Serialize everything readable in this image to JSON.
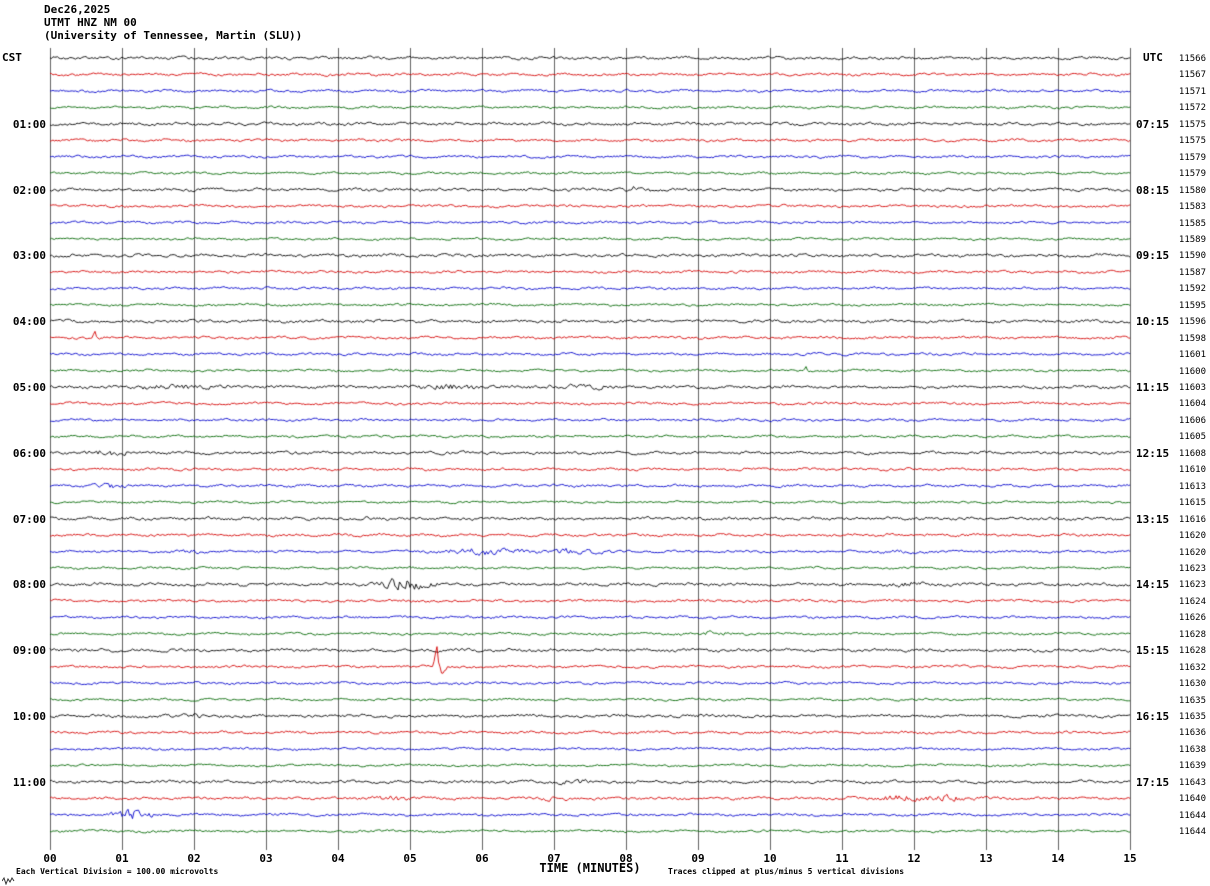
{
  "chart_data": {
    "type": "line",
    "title": "Dec26,2025",
    "station": "UTMT HNZ NM 00",
    "affiliation": "(University of Tennessee, Martin (SLU))",
    "xlabel": "TIME (MINUTES)",
    "x_tick_labels": [
      "00",
      "01",
      "02",
      "03",
      "04",
      "05",
      "06",
      "07",
      "08",
      "09",
      "10",
      "11",
      "12",
      "13",
      "14",
      "15"
    ],
    "x_range_minutes": [
      0,
      15
    ],
    "rows": 48,
    "minutes_per_row": 15,
    "grid_color": "#606060",
    "trace_color_cycle": [
      "#000000",
      "#d40000",
      "#0000cc",
      "#006600"
    ],
    "left_axis": {
      "header": "CST",
      "hour_labels": [
        {
          "row": 4,
          "label": "01:00"
        },
        {
          "row": 8,
          "label": "02:00"
        },
        {
          "row": 12,
          "label": "03:00"
        },
        {
          "row": 16,
          "label": "04:00"
        },
        {
          "row": 20,
          "label": "05:00"
        },
        {
          "row": 24,
          "label": "06:00"
        },
        {
          "row": 28,
          "label": "07:00"
        },
        {
          "row": 32,
          "label": "08:00"
        },
        {
          "row": 36,
          "label": "09:00"
        },
        {
          "row": 40,
          "label": "10:00"
        },
        {
          "row": 44,
          "label": "11:00"
        }
      ]
    },
    "right_axis": {
      "header": "UTC",
      "hour_labels": [
        {
          "row": 4,
          "label": "07:15"
        },
        {
          "row": 8,
          "label": "08:15"
        },
        {
          "row": 12,
          "label": "09:15"
        },
        {
          "row": 16,
          "label": "10:15"
        },
        {
          "row": 20,
          "label": "11:15"
        },
        {
          "row": 24,
          "label": "12:15"
        },
        {
          "row": 28,
          "label": "13:15"
        },
        {
          "row": 32,
          "label": "14:15"
        },
        {
          "row": 36,
          "label": "15:15"
        },
        {
          "row": 40,
          "label": "16:15"
        },
        {
          "row": 44,
          "label": "17:15"
        }
      ]
    },
    "trace_counter_values": [
      11566,
      11567,
      11571,
      11572,
      11575,
      11575,
      11579,
      11579,
      11580,
      11583,
      11585,
      11589,
      11590,
      11587,
      11592,
      11595,
      11596,
      11598,
      11601,
      11600,
      11603,
      11604,
      11606,
      11605,
      11608,
      11610,
      11613,
      11615,
      11616,
      11620,
      11620,
      11623,
      11623,
      11624,
      11626,
      11628,
      11628,
      11632,
      11630,
      11635,
      11635,
      11636,
      11638,
      11639,
      11643,
      11640,
      11644,
      11644
    ],
    "footnotes": {
      "left": "Each Vertical Division =  100.00 microvolts",
      "right": "Traces clipped at plus/minus 5 vertical divisions"
    },
    "base_amplitude_by_color": [
      1.8,
      1.5,
      1.4,
      1.3
    ],
    "events": [
      {
        "row": 8,
        "minute": 8.15,
        "amp": 2.5,
        "width": 0.12
      },
      {
        "row": 17,
        "minute": 0.63,
        "amp": 7,
        "width": 0.05,
        "spike": true
      },
      {
        "row": 19,
        "minute": 10.5,
        "amp": 5,
        "width": 0.04,
        "spike": true
      },
      {
        "row": 20,
        "minute": 1.7,
        "amp": 2.3,
        "width": 0.35
      },
      {
        "row": 20,
        "minute": 5.6,
        "amp": 2.4,
        "width": 0.3
      },
      {
        "row": 20,
        "minute": 7.35,
        "amp": 2.1,
        "width": 0.35
      },
      {
        "row": 24,
        "minute": 0.85,
        "amp": 2.0,
        "width": 0.2
      },
      {
        "row": 26,
        "minute": 0.85,
        "amp": 2.4,
        "width": 0.18
      },
      {
        "row": 30,
        "minute": 1.9,
        "amp": 1.8,
        "width": 0.15
      },
      {
        "row": 30,
        "minute": 6.0,
        "amp": 3.2,
        "width": 0.35
      },
      {
        "row": 30,
        "minute": 7.3,
        "amp": 2.6,
        "width": 0.3
      },
      {
        "row": 30,
        "minute": 11.9,
        "amp": 2.2,
        "width": 0.2
      },
      {
        "row": 32,
        "minute": 4.9,
        "amp": 6.5,
        "width": 0.22
      },
      {
        "row": 32,
        "minute": 11.9,
        "amp": 2.0,
        "width": 0.2
      },
      {
        "row": 35,
        "minute": 9.2,
        "amp": 1.8,
        "width": 0.2
      },
      {
        "row": 37,
        "minute": 5.38,
        "amp": 22,
        "width": 0.06,
        "spike": true
      },
      {
        "row": 40,
        "minute": 2.0,
        "amp": 1.6,
        "width": 0.2
      },
      {
        "row": 44,
        "minute": 7.2,
        "amp": 1.7,
        "width": 0.2
      },
      {
        "row": 45,
        "minute": 4.7,
        "amp": 2.2,
        "width": 0.2
      },
      {
        "row": 45,
        "minute": 7.1,
        "amp": 2.0,
        "width": 0.18
      },
      {
        "row": 45,
        "minute": 11.8,
        "amp": 2.4,
        "width": 0.25
      },
      {
        "row": 45,
        "minute": 12.5,
        "amp": 2.6,
        "width": 0.25
      },
      {
        "row": 46,
        "minute": 1.15,
        "amp": 5.5,
        "width": 0.18
      }
    ]
  }
}
